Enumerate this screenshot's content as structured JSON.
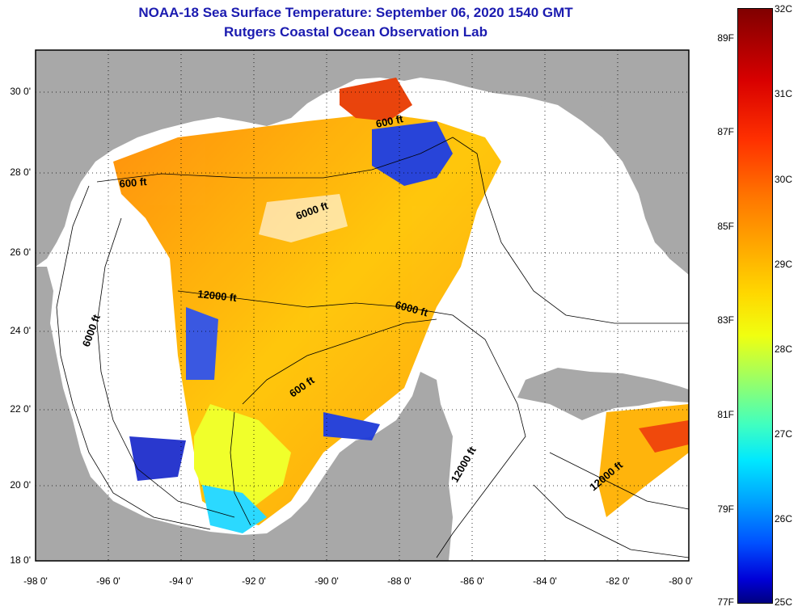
{
  "title": {
    "line1": "NOAA-18 Sea Surface Temperature:  September 06, 2020 1540 GMT",
    "line2": "Rutgers Coastal Ocean Observation Lab"
  },
  "map": {
    "lon_range": [
      -98,
      -80
    ],
    "lat_range": [
      18,
      31
    ],
    "lat_labels": [
      "30 0'",
      "28 0'",
      "26 0'",
      "24 0'",
      "22 0'",
      "20 0'",
      "18 0'"
    ],
    "lon_labels": [
      "-98 0'",
      "-96 0'",
      "-94 0'",
      "-92 0'",
      "-90 0'",
      "-88 0'",
      "-86 0'",
      "-84 0'",
      "-82 0'",
      "-80 0'"
    ],
    "contour_labels": [
      "600 ft",
      "600 ft",
      "6000 ft",
      "12000 ft",
      "6000 ft",
      "6000 ft",
      "600 ft",
      "12000 ft",
      "12000 ft"
    ]
  },
  "colorbar": {
    "fahrenheit": [
      "89F",
      "87F",
      "85F",
      "83F",
      "81F",
      "79F",
      "77F"
    ],
    "celsius": [
      "32C",
      "31C",
      "30C",
      "29C",
      "28C",
      "27C",
      "26C",
      "25C"
    ],
    "colors": [
      "#800000",
      "#d80000",
      "#ff7800",
      "#ffd800",
      "#a0ff60",
      "#00e8ff",
      "#0050ff",
      "#000080"
    ]
  }
}
